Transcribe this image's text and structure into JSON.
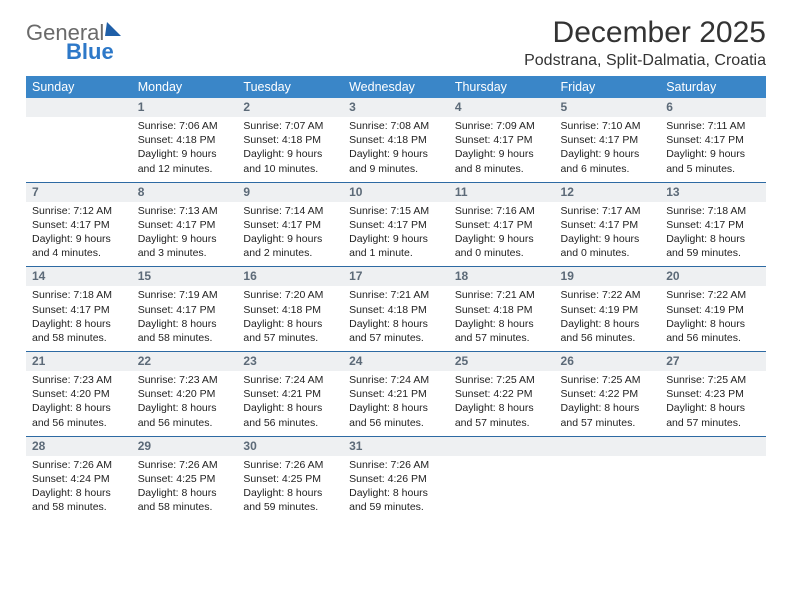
{
  "brand": {
    "part1": "General",
    "part2": "Blue"
  },
  "title": "December 2025",
  "subtitle": "Podstrana, Split-Dalmatia, Croatia",
  "weekdays": [
    "Sunday",
    "Monday",
    "Tuesday",
    "Wednesday",
    "Thursday",
    "Friday",
    "Saturday"
  ],
  "colors": {
    "header_bg": "#3a86c8",
    "header_text": "#ffffff",
    "daynum_bg": "#eef0f2",
    "daynum_text": "#5c6a78",
    "rule": "#2d6aa3"
  },
  "grid": [
    [
      {
        "n": "",
        "sr": "",
        "ss": "",
        "dl": ""
      },
      {
        "n": "1",
        "sr": "7:06 AM",
        "ss": "4:18 PM",
        "dl": "9 hours and 12 minutes."
      },
      {
        "n": "2",
        "sr": "7:07 AM",
        "ss": "4:18 PM",
        "dl": "9 hours and 10 minutes."
      },
      {
        "n": "3",
        "sr": "7:08 AM",
        "ss": "4:18 PM",
        "dl": "9 hours and 9 minutes."
      },
      {
        "n": "4",
        "sr": "7:09 AM",
        "ss": "4:17 PM",
        "dl": "9 hours and 8 minutes."
      },
      {
        "n": "5",
        "sr": "7:10 AM",
        "ss": "4:17 PM",
        "dl": "9 hours and 6 minutes."
      },
      {
        "n": "6",
        "sr": "7:11 AM",
        "ss": "4:17 PM",
        "dl": "9 hours and 5 minutes."
      }
    ],
    [
      {
        "n": "7",
        "sr": "7:12 AM",
        "ss": "4:17 PM",
        "dl": "9 hours and 4 minutes."
      },
      {
        "n": "8",
        "sr": "7:13 AM",
        "ss": "4:17 PM",
        "dl": "9 hours and 3 minutes."
      },
      {
        "n": "9",
        "sr": "7:14 AM",
        "ss": "4:17 PM",
        "dl": "9 hours and 2 minutes."
      },
      {
        "n": "10",
        "sr": "7:15 AM",
        "ss": "4:17 PM",
        "dl": "9 hours and 1 minute."
      },
      {
        "n": "11",
        "sr": "7:16 AM",
        "ss": "4:17 PM",
        "dl": "9 hours and 0 minutes."
      },
      {
        "n": "12",
        "sr": "7:17 AM",
        "ss": "4:17 PM",
        "dl": "9 hours and 0 minutes."
      },
      {
        "n": "13",
        "sr": "7:18 AM",
        "ss": "4:17 PM",
        "dl": "8 hours and 59 minutes."
      }
    ],
    [
      {
        "n": "14",
        "sr": "7:18 AM",
        "ss": "4:17 PM",
        "dl": "8 hours and 58 minutes."
      },
      {
        "n": "15",
        "sr": "7:19 AM",
        "ss": "4:17 PM",
        "dl": "8 hours and 58 minutes."
      },
      {
        "n": "16",
        "sr": "7:20 AM",
        "ss": "4:18 PM",
        "dl": "8 hours and 57 minutes."
      },
      {
        "n": "17",
        "sr": "7:21 AM",
        "ss": "4:18 PM",
        "dl": "8 hours and 57 minutes."
      },
      {
        "n": "18",
        "sr": "7:21 AM",
        "ss": "4:18 PM",
        "dl": "8 hours and 57 minutes."
      },
      {
        "n": "19",
        "sr": "7:22 AM",
        "ss": "4:19 PM",
        "dl": "8 hours and 56 minutes."
      },
      {
        "n": "20",
        "sr": "7:22 AM",
        "ss": "4:19 PM",
        "dl": "8 hours and 56 minutes."
      }
    ],
    [
      {
        "n": "21",
        "sr": "7:23 AM",
        "ss": "4:20 PM",
        "dl": "8 hours and 56 minutes."
      },
      {
        "n": "22",
        "sr": "7:23 AM",
        "ss": "4:20 PM",
        "dl": "8 hours and 56 minutes."
      },
      {
        "n": "23",
        "sr": "7:24 AM",
        "ss": "4:21 PM",
        "dl": "8 hours and 56 minutes."
      },
      {
        "n": "24",
        "sr": "7:24 AM",
        "ss": "4:21 PM",
        "dl": "8 hours and 56 minutes."
      },
      {
        "n": "25",
        "sr": "7:25 AM",
        "ss": "4:22 PM",
        "dl": "8 hours and 57 minutes."
      },
      {
        "n": "26",
        "sr": "7:25 AM",
        "ss": "4:22 PM",
        "dl": "8 hours and 57 minutes."
      },
      {
        "n": "27",
        "sr": "7:25 AM",
        "ss": "4:23 PM",
        "dl": "8 hours and 57 minutes."
      }
    ],
    [
      {
        "n": "28",
        "sr": "7:26 AM",
        "ss": "4:24 PM",
        "dl": "8 hours and 58 minutes."
      },
      {
        "n": "29",
        "sr": "7:26 AM",
        "ss": "4:25 PM",
        "dl": "8 hours and 58 minutes."
      },
      {
        "n": "30",
        "sr": "7:26 AM",
        "ss": "4:25 PM",
        "dl": "8 hours and 59 minutes."
      },
      {
        "n": "31",
        "sr": "7:26 AM",
        "ss": "4:26 PM",
        "dl": "8 hours and 59 minutes."
      },
      {
        "n": "",
        "sr": "",
        "ss": "",
        "dl": ""
      },
      {
        "n": "",
        "sr": "",
        "ss": "",
        "dl": ""
      },
      {
        "n": "",
        "sr": "",
        "ss": "",
        "dl": ""
      }
    ]
  ],
  "labels": {
    "sunrise": "Sunrise:",
    "sunset": "Sunset:",
    "daylight": "Daylight:"
  }
}
